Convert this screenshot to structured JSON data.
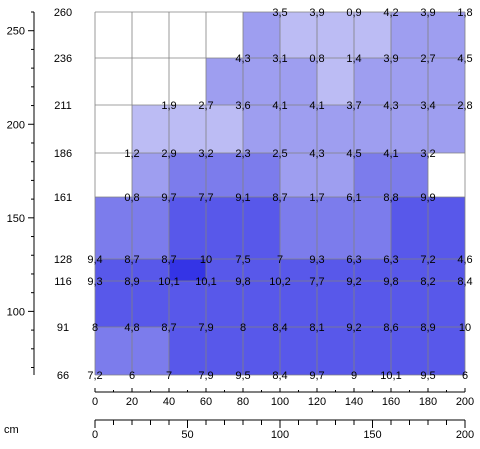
{
  "chart_data": {
    "type": "heatmap",
    "title": "",
    "xlabel": "",
    "ylabel": "",
    "x_unit_label": "cm",
    "xlim": [
      0,
      200
    ],
    "ylim": [
      66,
      260
    ],
    "y_scale_ticks": [
      100,
      150,
      200,
      250
    ],
    "x_scale_ticks": [
      0,
      50,
      100,
      150,
      200
    ],
    "x_levels": [
      0,
      20,
      40,
      60,
      80,
      100,
      120,
      140,
      160,
      180,
      200
    ],
    "y_levels": [
      66,
      91,
      116,
      128,
      161,
      186,
      211,
      236,
      260
    ],
    "grid": true,
    "color_scale": [
      "#ffffff",
      "#d6d6f9",
      "#bcbcf4",
      "#9e9ef0",
      "#7c7cec",
      "#5858ea",
      "#3434e6"
    ],
    "points": [
      {
        "x": 100,
        "y": 260,
        "label": "3,5"
      },
      {
        "x": 120,
        "y": 260,
        "label": "3,9"
      },
      {
        "x": 140,
        "y": 260,
        "label": "0,9"
      },
      {
        "x": 160,
        "y": 260,
        "label": "4,2"
      },
      {
        "x": 180,
        "y": 260,
        "label": "3,9"
      },
      {
        "x": 200,
        "y": 260,
        "label": "1,8"
      },
      {
        "x": 80,
        "y": 236,
        "label": "4,3"
      },
      {
        "x": 100,
        "y": 236,
        "label": "3,1"
      },
      {
        "x": 120,
        "y": 236,
        "label": "0,8"
      },
      {
        "x": 140,
        "y": 236,
        "label": "1,4"
      },
      {
        "x": 160,
        "y": 236,
        "label": "3,9"
      },
      {
        "x": 180,
        "y": 236,
        "label": "2,7"
      },
      {
        "x": 200,
        "y": 236,
        "label": "4,5"
      },
      {
        "x": 40,
        "y": 211,
        "label": "1,9"
      },
      {
        "x": 60,
        "y": 211,
        "label": "2,7"
      },
      {
        "x": 80,
        "y": 211,
        "label": "3,6"
      },
      {
        "x": 100,
        "y": 211,
        "label": "4,1"
      },
      {
        "x": 120,
        "y": 211,
        "label": "4,1"
      },
      {
        "x": 140,
        "y": 211,
        "label": "3,7"
      },
      {
        "x": 160,
        "y": 211,
        "label": "4,3"
      },
      {
        "x": 180,
        "y": 211,
        "label": "3,4"
      },
      {
        "x": 200,
        "y": 211,
        "label": "2,8"
      },
      {
        "x": 20,
        "y": 186,
        "label": "1,2"
      },
      {
        "x": 40,
        "y": 186,
        "label": "2,9"
      },
      {
        "x": 60,
        "y": 186,
        "label": "3,2"
      },
      {
        "x": 80,
        "y": 186,
        "label": "2,3"
      },
      {
        "x": 100,
        "y": 186,
        "label": "2,5"
      },
      {
        "x": 120,
        "y": 186,
        "label": "4,3"
      },
      {
        "x": 140,
        "y": 186,
        "label": "4,5"
      },
      {
        "x": 160,
        "y": 186,
        "label": "4,1"
      },
      {
        "x": 180,
        "y": 186,
        "label": "3,2"
      },
      {
        "x": 20,
        "y": 161,
        "label": "0,8"
      },
      {
        "x": 40,
        "y": 161,
        "label": "9,7"
      },
      {
        "x": 60,
        "y": 161,
        "label": "7,7"
      },
      {
        "x": 80,
        "y": 161,
        "label": "9,1"
      },
      {
        "x": 100,
        "y": 161,
        "label": "8,7"
      },
      {
        "x": 120,
        "y": 161,
        "label": "1,7"
      },
      {
        "x": 140,
        "y": 161,
        "label": "6,1"
      },
      {
        "x": 160,
        "y": 161,
        "label": "8,8"
      },
      {
        "x": 180,
        "y": 161,
        "label": "9,9"
      },
      {
        "x": 0,
        "y": 128,
        "label": "9,4"
      },
      {
        "x": 20,
        "y": 128,
        "label": "8,7"
      },
      {
        "x": 40,
        "y": 128,
        "label": "8,7"
      },
      {
        "x": 60,
        "y": 128,
        "label": "10"
      },
      {
        "x": 80,
        "y": 128,
        "label": "7,5"
      },
      {
        "x": 100,
        "y": 128,
        "label": "7"
      },
      {
        "x": 120,
        "y": 128,
        "label": "9,3"
      },
      {
        "x": 140,
        "y": 128,
        "label": "6,3"
      },
      {
        "x": 160,
        "y": 128,
        "label": "6,3"
      },
      {
        "x": 180,
        "y": 128,
        "label": "7,2"
      },
      {
        "x": 200,
        "y": 128,
        "label": "4,6"
      },
      {
        "x": 0,
        "y": 116,
        "label": "9,3"
      },
      {
        "x": 20,
        "y": 116,
        "label": "8,9"
      },
      {
        "x": 40,
        "y": 116,
        "label": "10,1"
      },
      {
        "x": 60,
        "y": 116,
        "label": "10,1"
      },
      {
        "x": 80,
        "y": 116,
        "label": "9,8"
      },
      {
        "x": 100,
        "y": 116,
        "label": "10,2"
      },
      {
        "x": 120,
        "y": 116,
        "label": "7,7"
      },
      {
        "x": 140,
        "y": 116,
        "label": "9,2"
      },
      {
        "x": 160,
        "y": 116,
        "label": "9,8"
      },
      {
        "x": 180,
        "y": 116,
        "label": "8,2"
      },
      {
        "x": 200,
        "y": 116,
        "label": "8,4"
      },
      {
        "x": 0,
        "y": 91,
        "label": "8"
      },
      {
        "x": 20,
        "y": 91,
        "label": "4,8"
      },
      {
        "x": 40,
        "y": 91,
        "label": "8,7"
      },
      {
        "x": 60,
        "y": 91,
        "label": "7,9"
      },
      {
        "x": 80,
        "y": 91,
        "label": "8"
      },
      {
        "x": 100,
        "y": 91,
        "label": "8,4"
      },
      {
        "x": 120,
        "y": 91,
        "label": "8,1"
      },
      {
        "x": 140,
        "y": 91,
        "label": "9,2"
      },
      {
        "x": 160,
        "y": 91,
        "label": "8,6"
      },
      {
        "x": 180,
        "y": 91,
        "label": "8,9"
      },
      {
        "x": 200,
        "y": 91,
        "label": "10"
      },
      {
        "x": 0,
        "y": 66,
        "label": "7,2"
      },
      {
        "x": 20,
        "y": 66,
        "label": "6"
      },
      {
        "x": 40,
        "y": 66,
        "label": "7"
      },
      {
        "x": 60,
        "y": 66,
        "label": "7,9"
      },
      {
        "x": 80,
        "y": 66,
        "label": "9,5"
      },
      {
        "x": 100,
        "y": 66,
        "label": "8,4"
      },
      {
        "x": 120,
        "y": 66,
        "label": "9,7"
      },
      {
        "x": 140,
        "y": 66,
        "label": "9"
      },
      {
        "x": 160,
        "y": 66,
        "label": "10,1"
      },
      {
        "x": 180,
        "y": 66,
        "label": "9,5"
      },
      {
        "x": 200,
        "y": 66,
        "label": "6"
      }
    ]
  }
}
